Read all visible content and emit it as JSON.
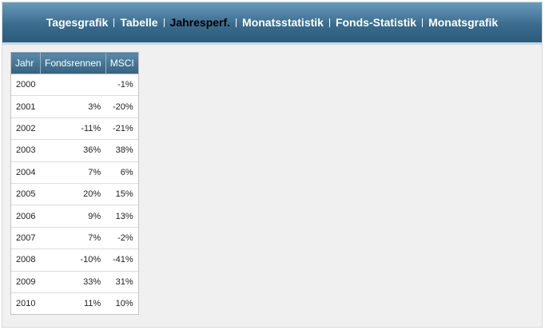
{
  "nav": {
    "items": [
      "Tagesgrafik",
      "Tabelle",
      "Jahresperf.",
      "Monatsstatistik",
      "Fonds-Statistik",
      "Monatsgrafik"
    ]
  },
  "table": {
    "columns": [
      "Jahr",
      "Fondsrennen",
      "MSCI"
    ],
    "rows": [
      [
        "2000",
        null,
        "-1%"
      ],
      [
        "2001",
        "3%",
        "-20%"
      ],
      [
        "2002",
        "-11%",
        "-21%"
      ],
      [
        "2003",
        "36%",
        "38%"
      ],
      [
        "2004",
        "7%",
        "6%"
      ],
      [
        "2005",
        "20%",
        "15%"
      ],
      [
        "2006",
        "9%",
        "13%"
      ],
      [
        "2007",
        "7%",
        "-2%"
      ],
      [
        "2008",
        "-10%",
        "-41%"
      ],
      [
        "2009",
        "33%",
        "31%"
      ],
      [
        "2010",
        "11%",
        "10%"
      ]
    ]
  }
}
